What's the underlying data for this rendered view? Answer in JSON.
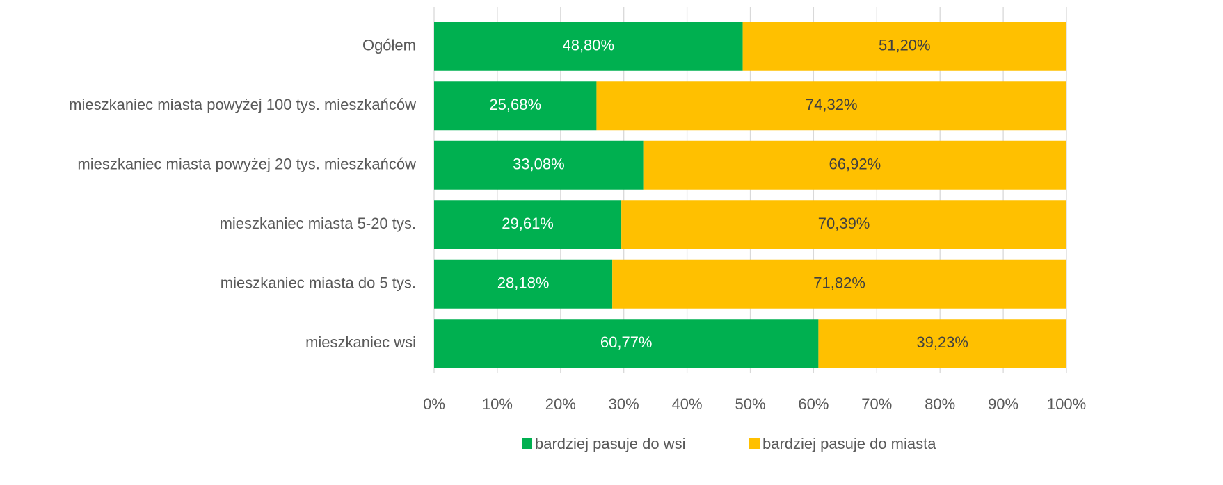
{
  "chart_data": {
    "type": "stacked-bar-horizontal",
    "categories": [
      "Ogółem",
      "mieszkaniec miasta powyżej 100 tys. mieszkańców",
      "mieszkaniec miasta powyżej 20 tys. mieszkańców",
      "mieszkaniec miasta 5-20 tys.",
      "mieszkaniec miasta do 5 tys.",
      "mieszkaniec wsi"
    ],
    "series": [
      {
        "name": "bardziej pasuje do wsi",
        "color": "#00b050",
        "label_color": "#ffffff",
        "values": [
          48.8,
          25.68,
          33.08,
          29.61,
          28.18,
          60.77
        ],
        "value_labels": [
          "48,80%",
          "25,68%",
          "33,08%",
          "29,61%",
          "28,18%",
          "60,77%"
        ]
      },
      {
        "name": "bardziej pasuje do miasta",
        "color": "#ffc000",
        "label_color": "#404040",
        "values": [
          51.2,
          74.32,
          66.92,
          70.39,
          71.82,
          39.23
        ],
        "value_labels": [
          "51,20%",
          "74,32%",
          "66,92%",
          "70,39%",
          "71,82%",
          "39,23%"
        ]
      }
    ],
    "xlim": [
      0,
      100
    ],
    "xticks": [
      {
        "value": 0,
        "label": "0%"
      },
      {
        "value": 10,
        "label": "10%"
      },
      {
        "value": 20,
        "label": "20%"
      },
      {
        "value": 30,
        "label": "30%"
      },
      {
        "value": 40,
        "label": "40%"
      },
      {
        "value": 50,
        "label": "50%"
      },
      {
        "value": 60,
        "label": "60%"
      },
      {
        "value": 70,
        "label": "70%"
      },
      {
        "value": 80,
        "label": "80%"
      },
      {
        "value": 90,
        "label": "90%"
      },
      {
        "value": 100,
        "label": "100%"
      }
    ],
    "grid": true,
    "legend": "bottom"
  }
}
